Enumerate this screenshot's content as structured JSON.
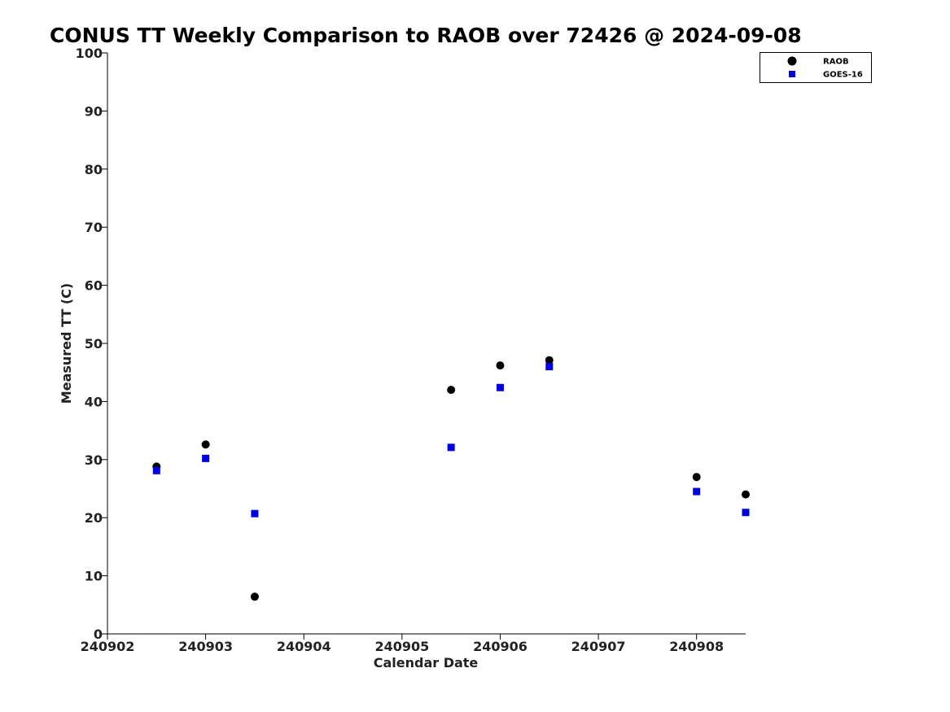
{
  "chart_data": {
    "type": "scatter",
    "title": "CONUS TT Weekly Comparison to RAOB over 72426 @ 2024-09-08",
    "xlabel": "Calendar Date",
    "ylabel": "Measured TT (C)",
    "xlim": [
      240902,
      240908.5
    ],
    "ylim": [
      0,
      100
    ],
    "x_ticks": [
      {
        "value": 240902,
        "label": "240902"
      },
      {
        "value": 240903,
        "label": "240903"
      },
      {
        "value": 240904,
        "label": "240904"
      },
      {
        "value": 240905,
        "label": "240905"
      },
      {
        "value": 240906,
        "label": "240906"
      },
      {
        "value": 240907,
        "label": "240907"
      },
      {
        "value": 240908,
        "label": "240908"
      }
    ],
    "y_ticks": [
      {
        "value": 0,
        "label": "0"
      },
      {
        "value": 10,
        "label": "10"
      },
      {
        "value": 20,
        "label": "20"
      },
      {
        "value": 30,
        "label": "30"
      },
      {
        "value": 40,
        "label": "40"
      },
      {
        "value": 50,
        "label": "50"
      },
      {
        "value": 60,
        "label": "60"
      },
      {
        "value": 70,
        "label": "70"
      },
      {
        "value": 80,
        "label": "80"
      },
      {
        "value": 90,
        "label": "90"
      },
      {
        "value": 100,
        "label": "100"
      }
    ],
    "grid": false,
    "legend_position": "top-right",
    "series": [
      {
        "name": "RAOB",
        "marker": "circle",
        "color": "#000000",
        "x": [
          240902.5,
          240903.0,
          240903.5,
          240905.5,
          240906.0,
          240906.5,
          240908.0,
          240908.5
        ],
        "y": [
          28.8,
          32.6,
          6.4,
          42.0,
          46.2,
          47.1,
          27.0,
          24.0
        ]
      },
      {
        "name": "GOES-16",
        "marker": "square",
        "color": "#0000e0",
        "x": [
          240902.5,
          240903.0,
          240903.5,
          240905.5,
          240906.0,
          240906.5,
          240908.0,
          240908.5
        ],
        "y": [
          28.1,
          30.2,
          20.7,
          32.1,
          42.4,
          46.0,
          24.5,
          20.9
        ]
      }
    ]
  }
}
